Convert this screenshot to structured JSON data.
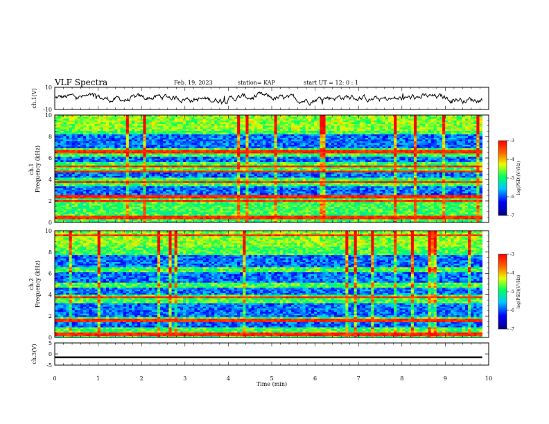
{
  "header": {
    "title": "VLF Spectra",
    "date": "Feb. 19, 2023",
    "station": "station= KAP",
    "start": "start  UT =   12: 0  : 1"
  },
  "chart_data": [
    {
      "type": "line",
      "panel": "ch1-waveform",
      "ylabel": "ch.1(V)",
      "ylim": [
        -10,
        10
      ],
      "yticks": [
        "10",
        "-10"
      ],
      "x_range": [
        0,
        9.85
      ],
      "baseline": 0,
      "fluctuation_amplitude": 3,
      "color": "#000000"
    },
    {
      "type": "heatmap",
      "panel": "ch1-spectrogram",
      "ylabel": [
        "ch.1",
        "Frequency  (kHz)"
      ],
      "ylim": [
        0,
        10
      ],
      "yticks": [
        "0",
        "2",
        "4",
        "6",
        "8",
        "10"
      ],
      "x_range": [
        0,
        9.85
      ],
      "strong_bands_khz": [
        0.5,
        2.0,
        2.4,
        3.8,
        4.8,
        5.2,
        6.6
      ],
      "quiet_bands_khz": [
        [
          2.6,
          3.4
        ],
        [
          4.2,
          4.6
        ],
        [
          5.6,
          6.2
        ],
        [
          7.0,
          8.2
        ]
      ],
      "colorbar": {
        "label": "log(PSD)(V²/Hz)",
        "ticks": [
          "-3",
          "-4",
          "-5",
          "-6",
          "-7"
        ],
        "range": [
          -7,
          -3
        ]
      }
    },
    {
      "type": "heatmap",
      "panel": "ch2-spectrogram",
      "ylabel": [
        "ch.2",
        "Frequency  (kHz)"
      ],
      "ylim": [
        0,
        10
      ],
      "yticks": [
        "0",
        "2",
        "4",
        "6",
        "8",
        "10"
      ],
      "x_range": [
        0,
        9.85
      ],
      "strong_bands_khz": [
        0.3,
        1.6,
        3.8,
        9.6
      ],
      "quiet_bands_khz": [
        [
          1.0,
          1.4
        ],
        [
          2.0,
          3.2
        ],
        [
          4.0,
          4.6
        ],
        [
          5.2,
          6.2
        ],
        [
          6.6,
          7.8
        ]
      ],
      "colorbar": {
        "label": "log(PSD)(V²/Hz)",
        "ticks": [
          "-3",
          "-4",
          "-5",
          "-6",
          "-7"
        ],
        "range": [
          -7,
          -3
        ]
      }
    },
    {
      "type": "line",
      "panel": "ch3-waveform",
      "ylabel": "ch.3(V)",
      "ylim": [
        -5,
        5
      ],
      "yticks": [
        "5",
        "0",
        "-5"
      ],
      "x_range": [
        0,
        9.85
      ],
      "baseline": -1.5,
      "band_halfwidth": 0.4,
      "color": "#000000"
    }
  ],
  "xaxis": {
    "label": "Time  (min)",
    "ticks": [
      "0",
      "1",
      "2",
      "3",
      "4",
      "5",
      "6",
      "7",
      "8",
      "9",
      "10"
    ],
    "range": [
      0,
      10
    ]
  }
}
